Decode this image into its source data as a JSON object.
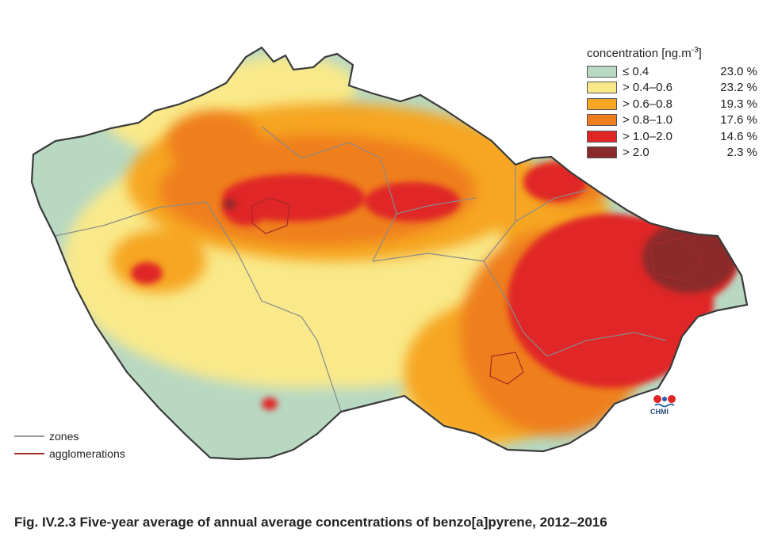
{
  "legend": {
    "title": "concentration [ng.m",
    "title_sup": "-3",
    "title_close": "]",
    "items": [
      {
        "label": "≤ 0.4",
        "percent": "23.0 %",
        "color": "#b8d8c2"
      },
      {
        "label": "> 0.4–0.6",
        "percent": "23.2 %",
        "color": "#f9e98a"
      },
      {
        "label": "> 0.6–0.8",
        "percent": "19.3 %",
        "color": "#f6a623"
      },
      {
        "label": "> 0.8–1.0",
        "percent": "17.6 %",
        "color": "#ef7f1e"
      },
      {
        "label": "> 1.0–2.0",
        "percent": "14.6 %",
        "color": "#e02525"
      },
      {
        "label": "> 2.0",
        "percent": "2.3 %",
        "color": "#8b2a2a"
      }
    ]
  },
  "line_legend": [
    {
      "label": "zones",
      "color": "#999999"
    },
    {
      "label": "agglomerations",
      "color": "#a52a2a"
    }
  ],
  "logo": {
    "text": "CHMI"
  },
  "caption": "Fig. IV.2.3  Five-year average of annual average concentrations of benzo[a]pyrene, 2012–2016"
}
